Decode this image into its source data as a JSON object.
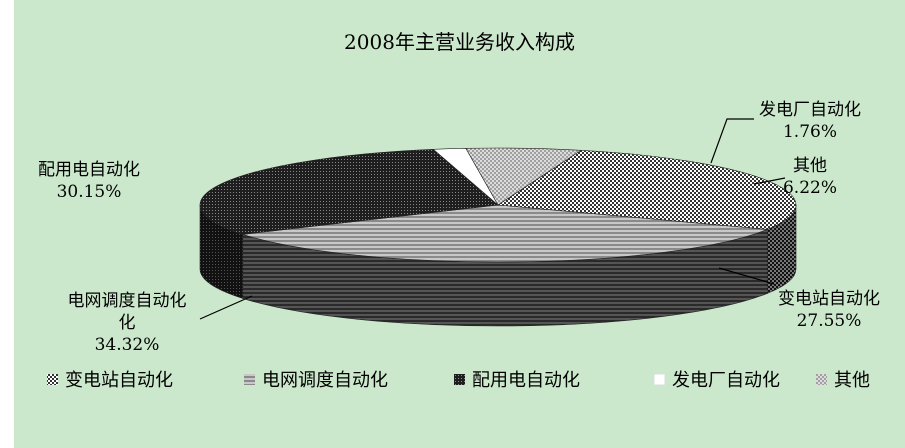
{
  "chart_data": {
    "type": "pie",
    "title": "2008年主营业务收入构成",
    "three_d": true,
    "legend_position": "bottom",
    "slices": [
      {
        "name": "变电站自动化",
        "value": 27.55,
        "label_lines": [
          "变电站自动化",
          "27.55%"
        ],
        "color": "#3a3a3a",
        "pattern": "checker"
      },
      {
        "name": "电网调度自动化",
        "value": 34.32,
        "label_lines": [
          "电网调度自动化",
          "化",
          "34.32%"
        ],
        "color": "#9a9a9a",
        "pattern": "hstripe"
      },
      {
        "name": "配用电自动化",
        "value": 30.15,
        "label_lines": [
          "配用电自动化",
          "30.15%"
        ],
        "color": "#2a2a2a",
        "pattern": "dense"
      },
      {
        "name": "发电厂自动化",
        "value": 1.76,
        "label_lines": [
          "发电厂自动化",
          "1.76%"
        ],
        "color": "#ffffff",
        "pattern": "white"
      },
      {
        "name": "其他",
        "value": 6.22,
        "label_lines": [
          "其他",
          "6.22%"
        ],
        "color": "#b0b0b0",
        "pattern": "light"
      }
    ],
    "legend": [
      "变电站自动化",
      "电网调度自动化",
      "配用电自动化",
      "发电厂自动化",
      "其他"
    ]
  }
}
